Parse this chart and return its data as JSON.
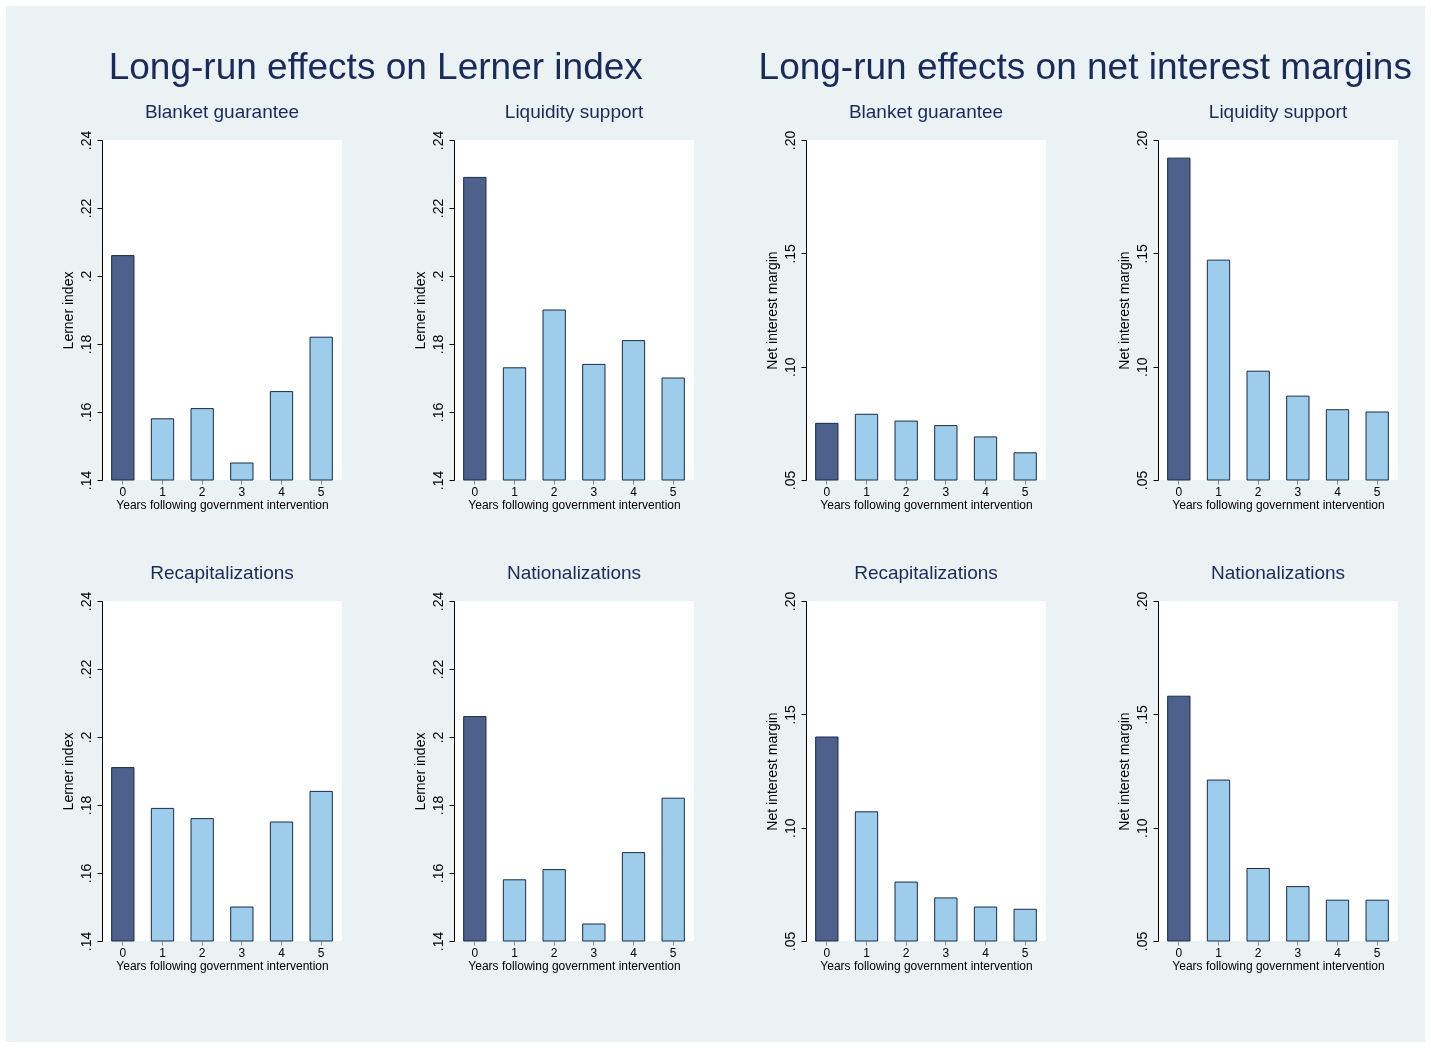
{
  "chart_data": [
    {
      "type": "bar",
      "title": "Blanket guarantee",
      "annotations": [
        "Long-run effects on Lerner index"
      ],
      "xlabel": "Years following government intervention",
      "ylabel": "Lerner index",
      "categories": [
        "0",
        "1",
        "2",
        "3",
        "4",
        "5"
      ],
      "values": [
        0.206,
        0.158,
        0.161,
        0.145,
        0.166,
        0.182
      ],
      "colors": [
        "#4e618c",
        "#9dcdeb",
        "#9dcdeb",
        "#9dcdeb",
        "#9dcdeb",
        "#9dcdeb"
      ],
      "ylim": [
        0.14,
        0.24
      ],
      "yticks": [
        {
          "value": 0.14,
          "label": ".14"
        },
        {
          "value": 0.16,
          "label": ".16"
        },
        {
          "value": 0.18,
          "label": ".18"
        },
        {
          "value": 0.2,
          "label": ".2"
        },
        {
          "value": 0.22,
          "label": ".22"
        },
        {
          "value": 0.24,
          "label": ".24"
        }
      ]
    },
    {
      "type": "bar",
      "title": "Liquidity support",
      "xlabel": "Years following government intervention",
      "ylabel": "Lerner index",
      "categories": [
        "0",
        "1",
        "2",
        "3",
        "4",
        "5"
      ],
      "values": [
        0.229,
        0.173,
        0.19,
        0.174,
        0.181,
        0.17
      ],
      "colors": [
        "#4e618c",
        "#9dcdeb",
        "#9dcdeb",
        "#9dcdeb",
        "#9dcdeb",
        "#9dcdeb"
      ],
      "ylim": [
        0.14,
        0.24
      ],
      "yticks": [
        {
          "value": 0.14,
          "label": ".14"
        },
        {
          "value": 0.16,
          "label": ".16"
        },
        {
          "value": 0.18,
          "label": ".18"
        },
        {
          "value": 0.2,
          "label": ".2"
        },
        {
          "value": 0.22,
          "label": ".22"
        },
        {
          "value": 0.24,
          "label": ".24"
        }
      ]
    },
    {
      "type": "bar",
      "title": "Blanket guarantee",
      "annotations": [
        "Long-run effects on net interest margins"
      ],
      "xlabel": "Years following government intervention",
      "ylabel": "Net interest margin",
      "categories": [
        "0",
        "1",
        "2",
        "3",
        "4",
        "5"
      ],
      "values": [
        0.075,
        0.079,
        0.076,
        0.074,
        0.069,
        0.062
      ],
      "colors": [
        "#4e618c",
        "#9dcdeb",
        "#9dcdeb",
        "#9dcdeb",
        "#9dcdeb",
        "#9dcdeb"
      ],
      "ylim": [
        0.05,
        0.2
      ],
      "yticks": [
        {
          "value": 0.05,
          "label": ".05"
        },
        {
          "value": 0.1,
          "label": ".10"
        },
        {
          "value": 0.15,
          "label": ".15"
        },
        {
          "value": 0.2,
          "label": ".20"
        }
      ]
    },
    {
      "type": "bar",
      "title": "Liquidity support",
      "xlabel": "Years following government intervention",
      "ylabel": "Net interest margin",
      "categories": [
        "0",
        "1",
        "2",
        "3",
        "4",
        "5"
      ],
      "values": [
        0.192,
        0.147,
        0.098,
        0.087,
        0.081,
        0.08
      ],
      "colors": [
        "#4e618c",
        "#9dcdeb",
        "#9dcdeb",
        "#9dcdeb",
        "#9dcdeb",
        "#9dcdeb"
      ],
      "ylim": [
        0.05,
        0.2
      ],
      "yticks": [
        {
          "value": 0.05,
          "label": ".05"
        },
        {
          "value": 0.1,
          "label": ".10"
        },
        {
          "value": 0.15,
          "label": ".15"
        },
        {
          "value": 0.2,
          "label": ".20"
        }
      ]
    },
    {
      "type": "bar",
      "title": "Recapitalizations",
      "xlabel": "Years following government intervention",
      "ylabel": "Lerner index",
      "categories": [
        "0",
        "1",
        "2",
        "3",
        "4",
        "5"
      ],
      "values": [
        0.191,
        0.179,
        0.176,
        0.15,
        0.175,
        0.184
      ],
      "colors": [
        "#4e618c",
        "#9dcdeb",
        "#9dcdeb",
        "#9dcdeb",
        "#9dcdeb",
        "#9dcdeb"
      ],
      "ylim": [
        0.14,
        0.24
      ],
      "yticks": [
        {
          "value": 0.14,
          "label": ".14"
        },
        {
          "value": 0.16,
          "label": ".16"
        },
        {
          "value": 0.18,
          "label": ".18"
        },
        {
          "value": 0.2,
          "label": ".2"
        },
        {
          "value": 0.22,
          "label": ".22"
        },
        {
          "value": 0.24,
          "label": ".24"
        }
      ]
    },
    {
      "type": "bar",
      "title": "Nationalizations",
      "xlabel": "Years following government intervention",
      "ylabel": "Lerner index",
      "categories": [
        "0",
        "1",
        "2",
        "3",
        "4",
        "5"
      ],
      "values": [
        0.206,
        0.158,
        0.161,
        0.145,
        0.166,
        0.182
      ],
      "colors": [
        "#4e618c",
        "#9dcdeb",
        "#9dcdeb",
        "#9dcdeb",
        "#9dcdeb",
        "#9dcdeb"
      ],
      "ylim": [
        0.14,
        0.24
      ],
      "yticks": [
        {
          "value": 0.14,
          "label": ".14"
        },
        {
          "value": 0.16,
          "label": ".16"
        },
        {
          "value": 0.18,
          "label": ".18"
        },
        {
          "value": 0.2,
          "label": ".2"
        },
        {
          "value": 0.22,
          "label": ".22"
        },
        {
          "value": 0.24,
          "label": ".24"
        }
      ]
    },
    {
      "type": "bar",
      "title": "Recapitalizations",
      "xlabel": "Years following government intervention",
      "ylabel": "Net interest margin",
      "categories": [
        "0",
        "1",
        "2",
        "3",
        "4",
        "5"
      ],
      "values": [
        0.14,
        0.107,
        0.076,
        0.069,
        0.065,
        0.064
      ],
      "colors": [
        "#4e618c",
        "#9dcdeb",
        "#9dcdeb",
        "#9dcdeb",
        "#9dcdeb",
        "#9dcdeb"
      ],
      "ylim": [
        0.05,
        0.2
      ],
      "yticks": [
        {
          "value": 0.05,
          "label": ".05"
        },
        {
          "value": 0.1,
          "label": ".10"
        },
        {
          "value": 0.15,
          "label": ".15"
        },
        {
          "value": 0.2,
          "label": ".20"
        }
      ]
    },
    {
      "type": "bar",
      "title": "Nationalizations",
      "xlabel": "Years following government intervention",
      "ylabel": "Net interest margin",
      "categories": [
        "0",
        "1",
        "2",
        "3",
        "4",
        "5"
      ],
      "values": [
        0.158,
        0.121,
        0.082,
        0.074,
        0.068,
        0.068
      ],
      "colors": [
        "#4e618c",
        "#9dcdeb",
        "#9dcdeb",
        "#9dcdeb",
        "#9dcdeb",
        "#9dcdeb"
      ],
      "ylim": [
        0.05,
        0.2
      ],
      "yticks": [
        {
          "value": 0.05,
          "label": ".05"
        },
        {
          "value": 0.1,
          "label": ".10"
        },
        {
          "value": 0.15,
          "label": ".15"
        },
        {
          "value": 0.2,
          "label": ".20"
        }
      ]
    }
  ]
}
